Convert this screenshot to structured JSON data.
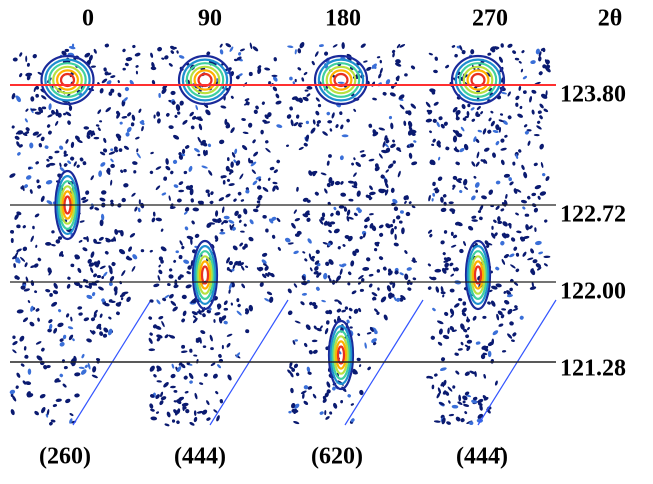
{
  "columns": [
    "0",
    "90",
    "180",
    "270"
  ],
  "axis_label": "2θ",
  "levels": [
    "123.80",
    "122.72",
    "122.00",
    "121.28"
  ],
  "reflections": [
    "(260)",
    "(444)",
    "(620)",
    "(444̄)"
  ]
}
